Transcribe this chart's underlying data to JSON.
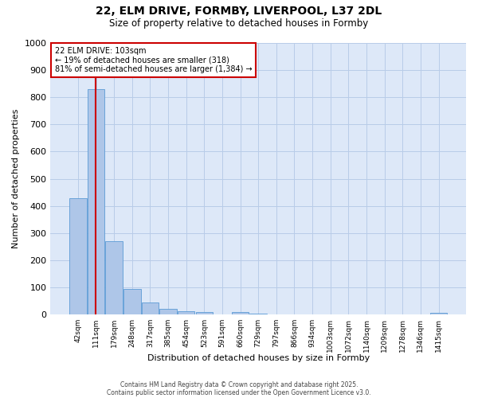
{
  "title_line1": "22, ELM DRIVE, FORMBY, LIVERPOOL, L37 2DL",
  "title_line2": "Size of property relative to detached houses in Formby",
  "xlabel": "Distribution of detached houses by size in Formby",
  "ylabel": "Number of detached properties",
  "bar_labels": [
    "42sqm",
    "111sqm",
    "179sqm",
    "248sqm",
    "317sqm",
    "385sqm",
    "454sqm",
    "523sqm",
    "591sqm",
    "660sqm",
    "729sqm",
    "797sqm",
    "866sqm",
    "934sqm",
    "1003sqm",
    "1072sqm",
    "1140sqm",
    "1209sqm",
    "1278sqm",
    "1346sqm",
    "1415sqm"
  ],
  "bar_values": [
    430,
    830,
    270,
    95,
    45,
    20,
    13,
    10,
    0,
    10,
    5,
    0,
    0,
    0,
    0,
    0,
    0,
    0,
    0,
    0,
    8
  ],
  "bar_color": "#aec6e8",
  "bar_edge_color": "#5b9bd5",
  "figure_bg": "#ffffff",
  "axes_bg": "#dde8f8",
  "grid_color": "#b8cce8",
  "vline_x_pos": 0.96,
  "vline_color": "#cc0000",
  "annotation_title": "22 ELM DRIVE: 103sqm",
  "annotation_line2": "← 19% of detached houses are smaller (318)",
  "annotation_line3": "81% of semi-detached houses are larger (1,384) →",
  "annotation_box_edgecolor": "#cc0000",
  "annotation_box_facecolor": "#ffffff",
  "ylim": [
    0,
    1000
  ],
  "yticks": [
    0,
    100,
    200,
    300,
    400,
    500,
    600,
    700,
    800,
    900,
    1000
  ],
  "footer_line1": "Contains HM Land Registry data © Crown copyright and database right 2025.",
  "footer_line2": "Contains public sector information licensed under the Open Government Licence v3.0."
}
